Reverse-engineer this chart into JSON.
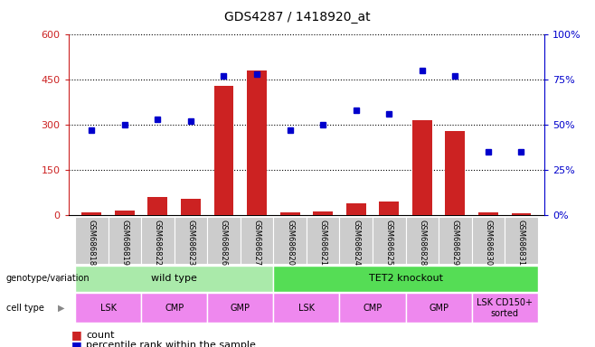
{
  "title": "GDS4287 / 1418920_at",
  "samples": [
    "GSM686818",
    "GSM686819",
    "GSM686822",
    "GSM686823",
    "GSM686826",
    "GSM686827",
    "GSM686820",
    "GSM686821",
    "GSM686824",
    "GSM686825",
    "GSM686828",
    "GSM686829",
    "GSM686830",
    "GSM686831"
  ],
  "counts": [
    10,
    15,
    60,
    55,
    430,
    480,
    8,
    12,
    40,
    45,
    315,
    280,
    8,
    7
  ],
  "percentile": [
    47,
    50,
    53,
    52,
    77,
    78,
    47,
    50,
    58,
    56,
    80,
    77,
    35,
    35
  ],
  "ylim_left": [
    0,
    600
  ],
  "ylim_right": [
    0,
    100
  ],
  "yticks_left": [
    0,
    150,
    300,
    450,
    600
  ],
  "yticks_right": [
    0,
    25,
    50,
    75,
    100
  ],
  "bar_color": "#cc2222",
  "dot_color": "#0000cc",
  "genotype_groups": [
    {
      "label": "wild type",
      "start": 0,
      "end": 6,
      "color": "#aaeaaa"
    },
    {
      "label": "TET2 knockout",
      "start": 6,
      "end": 14,
      "color": "#55dd55"
    }
  ],
  "cell_type_groups": [
    {
      "label": "LSK",
      "start": 0,
      "end": 2,
      "color": "#ee88ee"
    },
    {
      "label": "CMP",
      "start": 2,
      "end": 4,
      "color": "#ee88ee"
    },
    {
      "label": "GMP",
      "start": 4,
      "end": 6,
      "color": "#ee88ee"
    },
    {
      "label": "LSK",
      "start": 6,
      "end": 8,
      "color": "#ee88ee"
    },
    {
      "label": "CMP",
      "start": 8,
      "end": 10,
      "color": "#ee88ee"
    },
    {
      "label": "GMP",
      "start": 10,
      "end": 12,
      "color": "#ee88ee"
    },
    {
      "label": "LSK CD150+\nsorted",
      "start": 12,
      "end": 14,
      "color": "#ee88ee"
    }
  ],
  "left_axis_color": "#cc2222",
  "right_axis_color": "#0000cc",
  "tick_bg_color": "#cccccc",
  "label_genotype": "genotype/variation",
  "label_celltype": "cell type"
}
